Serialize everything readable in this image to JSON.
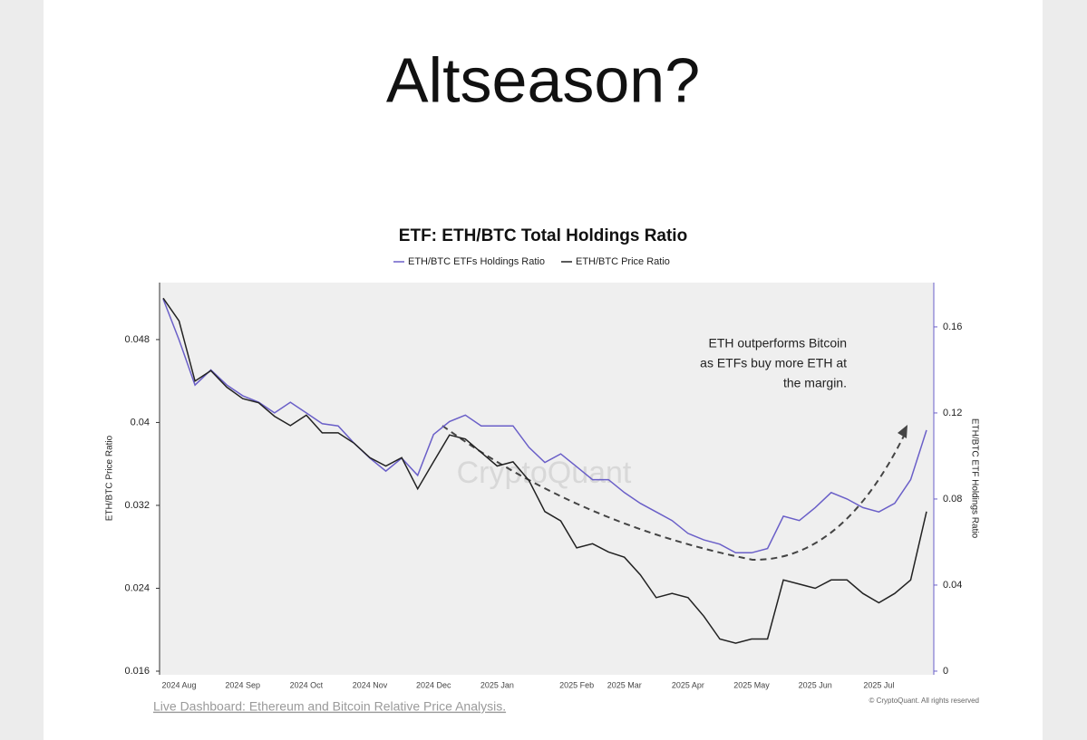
{
  "header": {
    "title": "Altseason?"
  },
  "chart_data": {
    "type": "line",
    "title": "ETF: ETH/BTC Total Holdings Ratio",
    "categories": [
      null,
      "2024 Aug",
      null,
      null,
      null,
      "2024 Sep",
      null,
      null,
      null,
      "2024 Oct",
      null,
      null,
      null,
      "2024 Nov",
      null,
      null,
      null,
      "2024 Dec",
      null,
      null,
      null,
      "2025 Jan",
      null,
      null,
      null,
      null,
      "2025 Feb",
      null,
      null,
      "2025 Mar",
      null,
      null,
      null,
      "2025 Apr",
      null,
      null,
      null,
      "2025 May",
      null,
      null,
      null,
      "2025 Jun",
      null,
      null,
      null,
      "2025 Jul",
      null,
      null,
      null
    ],
    "series": [
      {
        "name": "ETH/BTC ETFs Holdings Ratio",
        "color": "#6a5fc8",
        "axis": "y2",
        "values": [
          0.173,
          0.154,
          0.133,
          0.14,
          0.133,
          0.128,
          0.125,
          0.12,
          0.125,
          0.12,
          0.115,
          0.114,
          0.106,
          0.099,
          0.093,
          0.099,
          0.091,
          0.11,
          0.116,
          0.119,
          0.114,
          0.114,
          0.114,
          0.104,
          0.097,
          0.101,
          0.095,
          0.089,
          0.089,
          0.083,
          0.078,
          0.074,
          0.07,
          0.064,
          0.061,
          0.059,
          0.055,
          0.055,
          0.057,
          0.072,
          0.07,
          0.076,
          0.083,
          0.08,
          0.076,
          0.074,
          0.078,
          0.089,
          0.112
        ]
      },
      {
        "name": "ETH/BTC Price Ratio",
        "color": "#222222",
        "values": [
          0.052,
          0.0498,
          0.044,
          0.045,
          0.0434,
          0.0423,
          0.0419,
          0.0406,
          0.0397,
          0.0407,
          0.039,
          0.039,
          0.038,
          0.0366,
          0.0358,
          0.0366,
          0.0336,
          0.0362,
          0.0388,
          0.0384,
          0.0371,
          0.0358,
          0.0362,
          0.0344,
          0.0314,
          0.0305,
          0.0279,
          0.0283,
          0.0275,
          0.027,
          0.0253,
          0.0231,
          0.0235,
          0.0231,
          0.0213,
          0.0191,
          0.0187,
          0.0191,
          0.0191,
          0.0248,
          0.0244,
          0.024,
          0.0248,
          0.0248,
          0.0235,
          0.0226,
          0.0235,
          0.0248,
          0.0314
        ]
      }
    ],
    "y_label": "ETH/BTC Price Ratio",
    "y2_label": "ETH/BTC ETF Holdings Ratio",
    "ylim": [
      0.01565,
      0.0535
    ],
    "yticks": [
      0.016,
      0.024,
      0.032,
      0.04,
      0.048
    ],
    "y2lim": [
      -0.0017,
      0.1806
    ],
    "y2ticks": [
      0,
      0.04,
      0.08,
      0.12,
      0.16
    ],
    "annotation": [
      "ETH outperforms Bitcoin",
      "as ETFs buy more ETH at",
      "the margin."
    ],
    "watermark": "CryptoQuant",
    "copyright": "© CryptoQuant. All rights reserved"
  },
  "footer": {
    "link": "Live Dashboard: Ethereum and Bitcoin Relative Price Analysis."
  }
}
